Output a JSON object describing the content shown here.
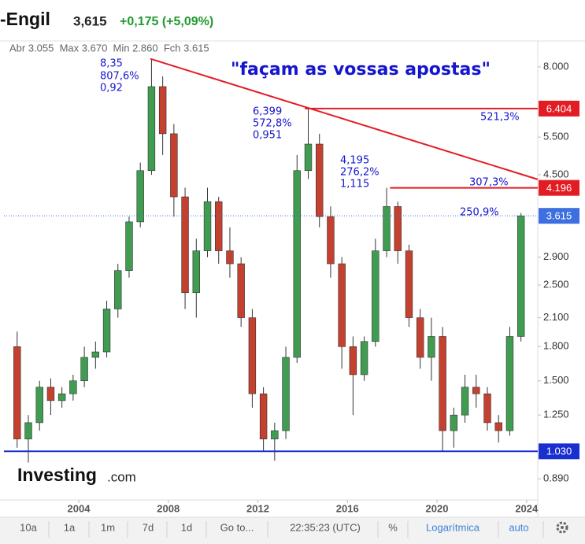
{
  "header": {
    "name": "-Engil",
    "price": "3,615",
    "change": "+0,175 (+5,09%)",
    "ohlc": "Abr 3.055  Max 3.670  Min 2.860  Fch 3.615"
  },
  "chart_data": {
    "type": "candlestick",
    "log_scale": true,
    "title": "\"façam as vossas apostas\"",
    "up_color": "#3f9c50",
    "down_color": "#c4402f",
    "x": [
      2001.25,
      2001.75,
      2002.25,
      2002.75,
      2003.25,
      2003.75,
      2004.25,
      2004.75,
      2005.25,
      2005.75,
      2006.25,
      2006.75,
      2007.25,
      2007.75,
      2008.25,
      2008.75,
      2009.25,
      2009.75,
      2010.25,
      2010.75,
      2011.25,
      2011.75,
      2012.25,
      2012.75,
      2013.25,
      2013.75,
      2014.25,
      2014.75,
      2015.25,
      2015.75,
      2016.25,
      2016.75,
      2017.25,
      2017.75,
      2018.25,
      2018.75,
      2019.25,
      2019.75,
      2020.25,
      2020.75,
      2021.25,
      2021.75,
      2022.25,
      2022.75,
      2023.25,
      2023.75
    ],
    "open": [
      1.8,
      1.1,
      1.2,
      1.45,
      1.35,
      1.4,
      1.5,
      1.7,
      1.75,
      2.2,
      2.7,
      3.5,
      4.6,
      7.2,
      5.6,
      4.0,
      2.4,
      3.0,
      3.9,
      3.0,
      2.8,
      2.1,
      1.4,
      1.1,
      1.15,
      1.7,
      4.6,
      5.3,
      3.6,
      2.8,
      1.8,
      1.55,
      1.85,
      3.0,
      3.8,
      3.0,
      2.1,
      1.7,
      1.9,
      1.15,
      1.25,
      1.45,
      1.4,
      1.2,
      1.15,
      1.9
    ],
    "high": [
      1.95,
      1.25,
      1.5,
      1.52,
      1.45,
      1.55,
      1.8,
      1.85,
      2.3,
      2.8,
      3.6,
      4.8,
      8.35,
      7.6,
      5.9,
      4.2,
      3.2,
      4.2,
      4.0,
      3.4,
      2.9,
      2.2,
      1.45,
      1.2,
      1.8,
      5.0,
      6.399,
      5.6,
      3.8,
      2.9,
      1.9,
      1.9,
      3.2,
      4.195,
      3.9,
      3.1,
      2.2,
      2.1,
      2.0,
      1.3,
      1.55,
      1.55,
      1.45,
      1.25,
      2.0,
      3.67
    ],
    "low": [
      1.05,
      0.97,
      1.15,
      1.25,
      1.3,
      1.35,
      1.45,
      1.6,
      1.7,
      2.1,
      2.6,
      3.4,
      4.5,
      5.0,
      3.6,
      2.2,
      2.1,
      2.9,
      2.8,
      2.6,
      2.0,
      1.3,
      1.03,
      0.98,
      1.1,
      1.65,
      4.4,
      3.4,
      2.6,
      1.6,
      1.25,
      1.5,
      1.8,
      2.9,
      2.8,
      2.0,
      1.6,
      1.5,
      1.03,
      1.05,
      1.2,
      1.3,
      1.15,
      1.08,
      1.12,
      1.85
    ],
    "close": [
      1.1,
      1.2,
      1.45,
      1.35,
      1.4,
      1.5,
      1.7,
      1.75,
      2.2,
      2.7,
      3.5,
      4.6,
      7.2,
      5.6,
      4.0,
      2.4,
      3.0,
      3.9,
      3.0,
      2.8,
      2.1,
      1.4,
      1.1,
      1.15,
      1.7,
      4.6,
      5.3,
      3.6,
      2.8,
      1.8,
      1.55,
      1.85,
      3.0,
      3.8,
      3.0,
      2.1,
      1.7,
      1.9,
      1.15,
      1.25,
      1.45,
      1.4,
      1.2,
      1.15,
      1.9,
      3.615
    ],
    "xlim": [
      2000.66,
      2024.5
    ],
    "xticks": [
      2004,
      2008,
      2012,
      2016,
      2020,
      2024
    ],
    "ylim": [
      0.795,
      9.07
    ],
    "yticks": [
      {
        "value": 0.89,
        "label": "0.890"
      },
      {
        "value": 1.25,
        "label": "1.250"
      },
      {
        "value": 1.5,
        "label": "1.500"
      },
      {
        "value": 1.8,
        "label": "1.800"
      },
      {
        "value": 2.1,
        "label": "2.100"
      },
      {
        "value": 2.5,
        "label": "2.500"
      },
      {
        "value": 2.9,
        "label": "2.900"
      },
      {
        "value": 4.5,
        "label": "4.500"
      },
      {
        "value": 5.5,
        "label": "5.500"
      },
      {
        "value": 8,
        "label": "8.000"
      }
    ],
    "levels": [
      {
        "value": 6.404,
        "label": "6.404",
        "color": "#e31b23",
        "from": 2014.1,
        "style": "solid"
      },
      {
        "value": 4.196,
        "label": "4.196",
        "color": "#e31b23",
        "from": 2017.9,
        "style": "solid"
      },
      {
        "value": 3.615,
        "label": "3.615",
        "color": "#3d6fe0",
        "from": 2000.66,
        "style": "dotted"
      },
      {
        "value": 1.03,
        "label": "1.030",
        "color": "#1a2fd0",
        "from": 2000.66,
        "style": "solid"
      }
    ],
    "trendline": {
      "color": "#e31b23",
      "x": [
        2007.2,
        2024.5
      ],
      "y": [
        8.35,
        4.39
      ]
    },
    "annotations": {
      "peak1": [
        "8,35",
        "807,6%",
        "0,92"
      ],
      "peak2": [
        "6,399",
        "572,8%",
        "0,951"
      ],
      "peak3": [
        "4,195",
        "276,2%",
        "1,115"
      ],
      "gain1": "521,3%",
      "gain2": "307,3%",
      "gain3": "250,9%"
    }
  },
  "logo": {
    "name": "Investing",
    "suffix": ".com"
  },
  "toolbar": [
    "10a",
    "1a",
    "1m",
    "7d",
    "1d",
    "Go to...",
    "22:35:23 (UTC)",
    "%",
    "Logarítmica",
    "auto"
  ]
}
